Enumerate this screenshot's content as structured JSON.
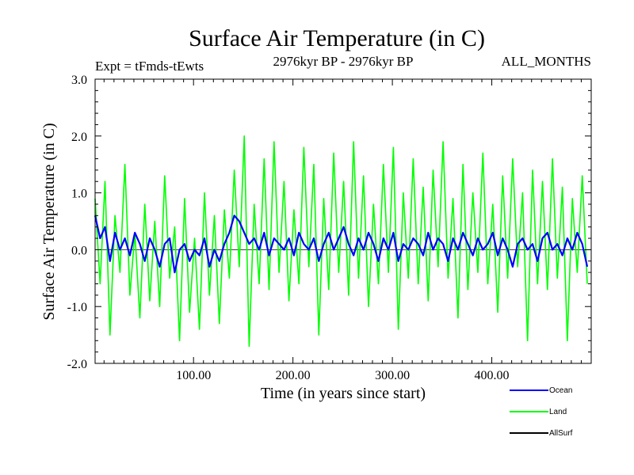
{
  "chart_data": {
    "type": "line",
    "title": "Surface Air Temperature (in C)",
    "subtitle_left": "Expt = tFmds-tEwts",
    "subtitle_center": "2976kyr BP - 2976kyr BP",
    "subtitle_right": "ALL_MONTHS",
    "xlabel": "Time (in years since start)",
    "ylabel": "Surface Air Temperature (in C)",
    "xlim": [
      1,
      500
    ],
    "ylim": [
      -2.0,
      3.0
    ],
    "xticks": [
      100,
      200,
      300,
      400
    ],
    "xtick_labels": [
      "100.00",
      "200.00",
      "300.00",
      "400.00"
    ],
    "yticks": [
      -2.0,
      -1.0,
      0.0,
      1.0,
      2.0,
      3.0
    ],
    "ytick_labels": [
      "-2.0",
      "-1.0",
      "0.0",
      "1.0",
      "2.0",
      "3.0"
    ],
    "legend_position": "bottom-right, outside plot",
    "series": [
      {
        "name": "Land",
        "legend_label": "Land",
        "color": "#00ff00",
        "x_start": 1,
        "x_step": 5,
        "values": [
          0.9,
          -0.6,
          1.2,
          -1.5,
          0.6,
          -0.4,
          1.5,
          -0.8,
          0.3,
          -1.2,
          0.8,
          -0.9,
          0.5,
          -1.0,
          1.3,
          -0.5,
          0.4,
          -1.6,
          0.9,
          -1.1,
          0.2,
          -1.4,
          1.0,
          -0.8,
          0.6,
          -1.3,
          0.7,
          -0.5,
          1.4,
          -0.3,
          2.0,
          -1.7,
          0.8,
          -0.6,
          1.6,
          -0.7,
          1.9,
          -0.4,
          1.2,
          -0.9,
          0.7,
          -0.6,
          1.8,
          -0.3,
          1.5,
          -1.5,
          0.9,
          -0.7,
          1.7,
          -0.4,
          1.2,
          -0.8,
          1.9,
          -0.5,
          1.3,
          -1.0,
          0.8,
          -0.6,
          1.5,
          -0.4,
          1.8,
          -1.4,
          1.0,
          -0.5,
          1.6,
          -0.6,
          1.1,
          -0.9,
          1.4,
          -0.3,
          1.9,
          -0.5,
          0.9,
          -1.2,
          1.5,
          -0.7,
          1.0,
          -0.4,
          1.7,
          -0.6,
          0.8,
          -1.1,
          1.3,
          -0.5,
          1.6,
          -0.3,
          1.0,
          -1.6,
          1.4,
          -0.6,
          1.2,
          -0.7,
          1.6,
          -0.5,
          1.1,
          -1.6,
          0.9,
          -0.4,
          1.3,
          -0.6
        ]
      },
      {
        "name": "Ocean",
        "legend_label": "Ocean",
        "color": "#0000ff",
        "x_start": 1,
        "x_step": 5,
        "values": [
          0.6,
          0.2,
          0.4,
          -0.2,
          0.3,
          0.0,
          0.2,
          -0.1,
          0.3,
          0.1,
          -0.2,
          0.2,
          0.0,
          -0.3,
          0.1,
          0.2,
          -0.4,
          0.0,
          0.1,
          -0.2,
          0.0,
          -0.1,
          0.2,
          -0.3,
          0.0,
          -0.2,
          0.1,
          0.3,
          0.6,
          0.5,
          0.3,
          0.1,
          0.2,
          0.0,
          0.3,
          -0.1,
          0.2,
          0.1,
          0.0,
          0.2,
          -0.1,
          0.3,
          0.1,
          0.0,
          0.2,
          -0.2,
          0.1,
          0.3,
          0.0,
          0.2,
          0.4,
          0.1,
          -0.1,
          0.2,
          0.0,
          0.3,
          0.1,
          -0.2,
          0.2,
          0.0,
          0.3,
          -0.2,
          0.1,
          0.0,
          0.2,
          0.1,
          -0.1,
          0.3,
          0.0,
          0.2,
          0.1,
          -0.2,
          0.2,
          0.0,
          0.3,
          0.1,
          -0.1,
          0.2,
          0.0,
          0.1,
          0.3,
          -0.1,
          0.2,
          0.0,
          -0.3,
          0.1,
          0.2,
          0.0,
          0.1,
          -0.2,
          0.2,
          0.3,
          0.0,
          0.1,
          -0.1,
          0.2,
          0.0,
          0.3,
          0.1,
          -0.3
        ]
      },
      {
        "name": "AllSurf",
        "legend_label": "AllSurf",
        "color": "#000000",
        "values": []
      }
    ]
  }
}
